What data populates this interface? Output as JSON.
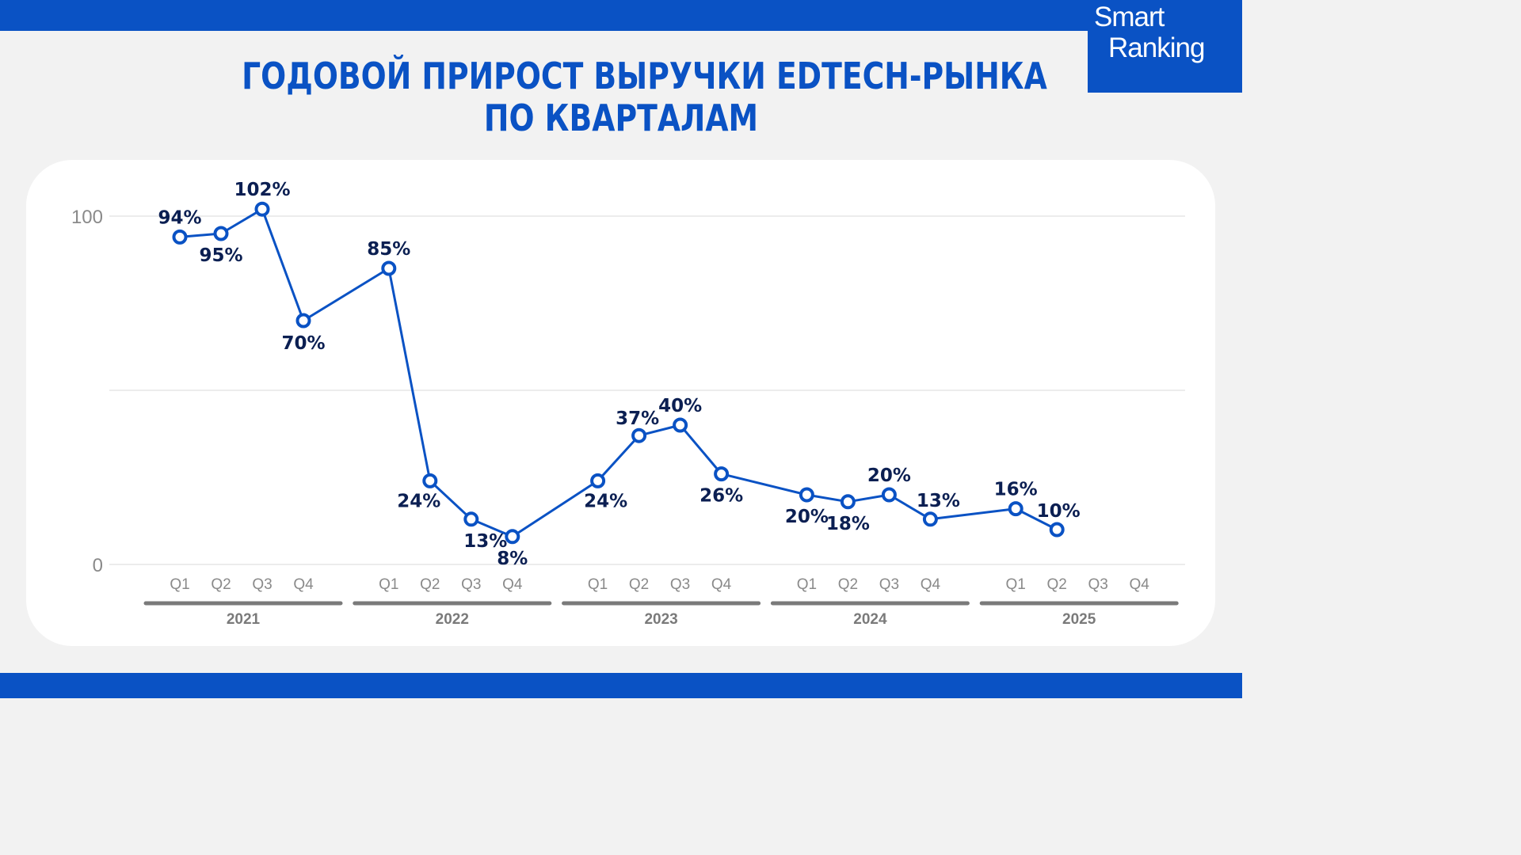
{
  "title": {
    "line1": "ГОДОВОЙ ПРИРОСТ ВЫРУЧКИ EDTECH-РЫНКА",
    "line2": "ПО КВАРТАЛАМ"
  },
  "logo": {
    "line1": "Smart",
    "line2": "Ranking"
  },
  "colors": {
    "brand": "#0a52c4",
    "line": "#0a52c4",
    "label": "#0b1f52",
    "grid": "#d9d9d9",
    "axis_bar": "#7a7a7a"
  },
  "chart_data": {
    "type": "line",
    "title": "ГОДОВОЙ ПРИРОСТ ВЫРУЧКИ EDTECH-РЫНКА ПО КВАРТАЛАМ",
    "ylim": [
      0,
      100
    ],
    "yticks": [
      "0",
      "100"
    ],
    "grid": true,
    "groups": [
      {
        "year": "2021",
        "quarters": [
          "Q1",
          "Q2",
          "Q3",
          "Q4"
        ]
      },
      {
        "year": "2022",
        "quarters": [
          "Q1",
          "Q2",
          "Q3",
          "Q4"
        ]
      },
      {
        "year": "2023",
        "quarters": [
          "Q1",
          "Q2",
          "Q3",
          "Q4"
        ]
      },
      {
        "year": "2024",
        "quarters": [
          "Q1",
          "Q2",
          "Q3",
          "Q4"
        ]
      },
      {
        "year": "2025",
        "quarters": [
          "Q1",
          "Q2",
          "Q3",
          "Q4"
        ]
      }
    ],
    "series": [
      {
        "values": [
          [
            94,
            95,
            102,
            70
          ],
          [
            85,
            24,
            13,
            8
          ],
          [
            24,
            37,
            40,
            26
          ],
          [
            20,
            18,
            20,
            13
          ],
          [
            16,
            10,
            null,
            null
          ]
        ],
        "labels": [
          [
            "94%",
            "95%",
            "102%",
            "70%"
          ],
          [
            "85%",
            "24%",
            "13%",
            "8%"
          ],
          [
            "24%",
            "37%",
            "40%",
            "26%"
          ],
          [
            "20%",
            "18%",
            "20%",
            "13%"
          ],
          [
            "16%",
            "10%",
            null,
            null
          ]
        ]
      }
    ]
  }
}
